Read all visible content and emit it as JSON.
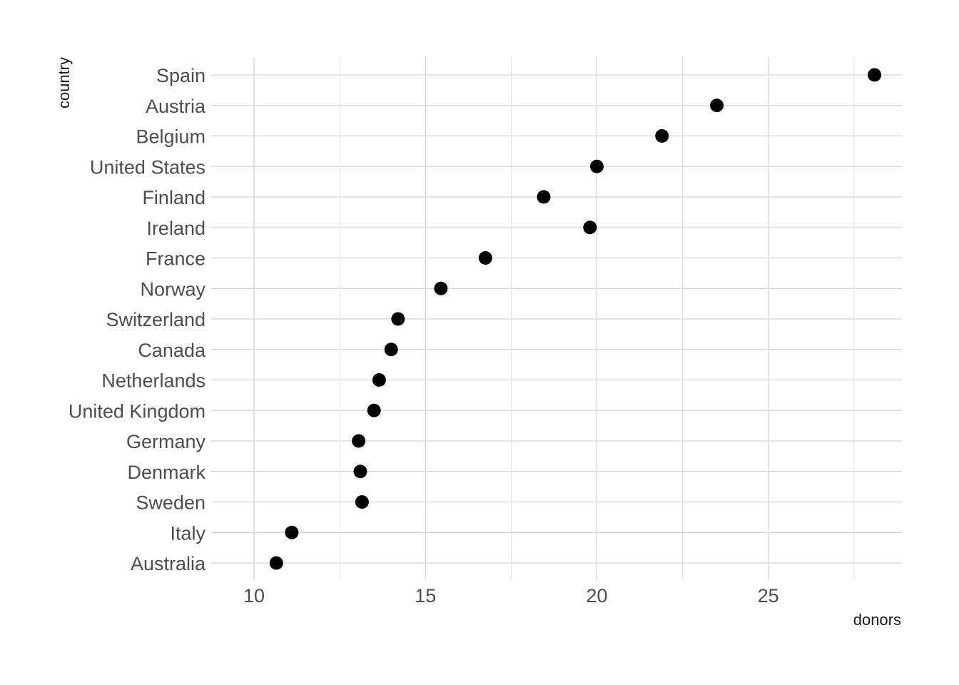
{
  "chart_data": {
    "type": "scatter",
    "title": "",
    "xlabel": "donors",
    "ylabel": "country",
    "xlim": [
      8.75,
      28.9
    ],
    "x_ticks": [
      10,
      15,
      20,
      25
    ],
    "x_tick_labels": [
      "10",
      "15",
      "20",
      "25"
    ],
    "grid": true,
    "legend": "none",
    "point_color": "#000000",
    "categories": [
      "Spain",
      "Austria",
      "Belgium",
      "United States",
      "Finland",
      "Ireland",
      "France",
      "Norway",
      "Switzerland",
      "Canada",
      "Netherlands",
      "United Kingdom",
      "Germany",
      "Denmark",
      "Sweden",
      "Italy",
      "Australia"
    ],
    "values": [
      28.1,
      23.5,
      21.9,
      20.0,
      18.45,
      19.8,
      16.75,
      15.45,
      14.2,
      14.0,
      13.65,
      13.5,
      13.05,
      13.1,
      13.15,
      11.1,
      10.65
    ]
  }
}
